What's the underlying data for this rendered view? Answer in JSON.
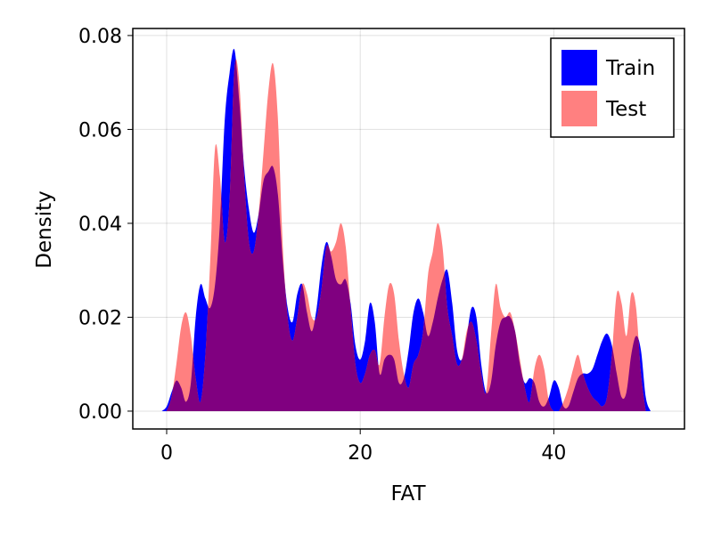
{
  "chart_data": {
    "type": "area",
    "xlabel": "FAT",
    "ylabel": "Density",
    "xlim": [
      -3.5,
      53.5
    ],
    "ylim": [
      -0.0038,
      0.0815
    ],
    "xticks": [
      0,
      20,
      40
    ],
    "yticks": [
      0.0,
      0.02,
      0.04,
      0.06,
      0.08
    ],
    "xtick_labels": [
      "0",
      "20",
      "40"
    ],
    "ytick_labels": [
      "0.00",
      "0.02",
      "0.04",
      "0.06",
      "0.08"
    ],
    "grid": true,
    "legend_position": "top-right",
    "overlap_color": "#800080",
    "series": [
      {
        "name": "Train",
        "color": "#0000ff",
        "x": [
          -0.5,
          0.0,
          0.5,
          1.0,
          1.5,
          2.0,
          2.5,
          3.0,
          3.5,
          4.0,
          4.5,
          5.0,
          5.5,
          6.0,
          6.5,
          7.0,
          7.5,
          8.0,
          8.5,
          9.0,
          9.5,
          10.0,
          10.5,
          11.0,
          11.5,
          12.0,
          12.5,
          13.0,
          13.5,
          14.0,
          14.5,
          15.0,
          15.5,
          16.0,
          16.5,
          17.0,
          17.5,
          18.0,
          18.5,
          19.0,
          19.5,
          20.0,
          20.5,
          21.0,
          21.5,
          22.0,
          22.5,
          23.0,
          23.5,
          24.0,
          24.5,
          25.0,
          25.5,
          26.0,
          26.5,
          27.0,
          27.5,
          28.0,
          28.5,
          29.0,
          29.5,
          30.0,
          30.5,
          31.0,
          31.5,
          32.0,
          32.5,
          33.0,
          33.5,
          34.0,
          34.5,
          35.0,
          35.5,
          36.0,
          36.5,
          37.0,
          37.5,
          38.0,
          38.5,
          39.0,
          39.5,
          40.0,
          40.5,
          41.0,
          41.5,
          42.0,
          42.5,
          43.0,
          43.5,
          44.0,
          44.5,
          45.0,
          45.5,
          46.0,
          46.5,
          47.0,
          47.5,
          48.0,
          48.5,
          49.0,
          49.5,
          50.0
        ],
        "y": [
          0.0,
          0.001,
          0.004,
          0.0065,
          0.005,
          0.002,
          0.006,
          0.02,
          0.027,
          0.024,
          0.022,
          0.027,
          0.04,
          0.062,
          0.072,
          0.077,
          0.066,
          0.052,
          0.043,
          0.038,
          0.042,
          0.049,
          0.051,
          0.052,
          0.046,
          0.032,
          0.022,
          0.019,
          0.025,
          0.027,
          0.021,
          0.017,
          0.022,
          0.031,
          0.036,
          0.033,
          0.028,
          0.027,
          0.028,
          0.023,
          0.014,
          0.011,
          0.015,
          0.023,
          0.019,
          0.008,
          0.011,
          0.012,
          0.011,
          0.006,
          0.007,
          0.013,
          0.021,
          0.024,
          0.021,
          0.016,
          0.019,
          0.024,
          0.028,
          0.03,
          0.023,
          0.013,
          0.011,
          0.016,
          0.022,
          0.02,
          0.01,
          0.004,
          0.006,
          0.014,
          0.019,
          0.02,
          0.02,
          0.017,
          0.01,
          0.006,
          0.007,
          0.006,
          0.002,
          0.001,
          0.003,
          0.0065,
          0.005,
          0.001,
          0.001,
          0.004,
          0.007,
          0.008,
          0.008,
          0.009,
          0.012,
          0.015,
          0.0165,
          0.014,
          0.008,
          0.003,
          0.004,
          0.012,
          0.016,
          0.013,
          0.003,
          0.0
        ]
      },
      {
        "name": "Test",
        "color": "#ff8080",
        "x": [
          0.0,
          0.5,
          1.0,
          1.5,
          2.0,
          2.5,
          3.0,
          3.5,
          4.0,
          4.5,
          5.0,
          5.5,
          6.0,
          6.5,
          7.0,
          7.5,
          8.0,
          8.5,
          9.0,
          9.5,
          10.0,
          10.5,
          11.0,
          11.5,
          12.0,
          12.5,
          13.0,
          13.5,
          14.0,
          14.5,
          15.0,
          15.5,
          16.0,
          16.5,
          17.0,
          17.5,
          18.0,
          18.5,
          19.0,
          19.5,
          20.0,
          20.5,
          21.0,
          21.5,
          22.0,
          22.5,
          23.0,
          23.5,
          24.0,
          24.5,
          25.0,
          25.5,
          26.0,
          26.5,
          27.0,
          27.5,
          28.0,
          28.5,
          29.0,
          29.5,
          30.0,
          30.5,
          31.0,
          31.5,
          32.0,
          32.5,
          33.0,
          33.5,
          34.0,
          34.5,
          35.0,
          35.5,
          36.0,
          36.5,
          37.0,
          37.5,
          38.0,
          38.5,
          39.0,
          39.5,
          40.0,
          40.5,
          41.0,
          41.5,
          42.0,
          42.5,
          43.0,
          43.5,
          44.0,
          44.5,
          45.0,
          45.5,
          46.0,
          46.5,
          47.0,
          47.5,
          48.0,
          48.5,
          49.0,
          49.5
        ],
        "y": [
          0.0,
          0.003,
          0.01,
          0.018,
          0.021,
          0.016,
          0.007,
          0.002,
          0.012,
          0.032,
          0.056,
          0.05,
          0.036,
          0.045,
          0.073,
          0.07,
          0.05,
          0.036,
          0.034,
          0.042,
          0.055,
          0.068,
          0.074,
          0.062,
          0.035,
          0.02,
          0.015,
          0.02,
          0.027,
          0.025,
          0.02,
          0.02,
          0.026,
          0.035,
          0.034,
          0.036,
          0.04,
          0.035,
          0.022,
          0.01,
          0.006,
          0.008,
          0.012,
          0.013,
          0.01,
          0.02,
          0.027,
          0.025,
          0.015,
          0.008,
          0.005,
          0.01,
          0.012,
          0.017,
          0.029,
          0.034,
          0.04,
          0.035,
          0.022,
          0.016,
          0.01,
          0.011,
          0.017,
          0.019,
          0.015,
          0.008,
          0.004,
          0.016,
          0.027,
          0.022,
          0.02,
          0.021,
          0.017,
          0.011,
          0.005,
          0.002,
          0.009,
          0.012,
          0.009,
          0.002,
          0.0,
          0.0,
          0.002,
          0.005,
          0.009,
          0.012,
          0.008,
          0.005,
          0.003,
          0.002,
          0.001,
          0.003,
          0.012,
          0.025,
          0.023,
          0.016,
          0.025,
          0.022,
          0.008,
          0.0
        ]
      }
    ]
  }
}
